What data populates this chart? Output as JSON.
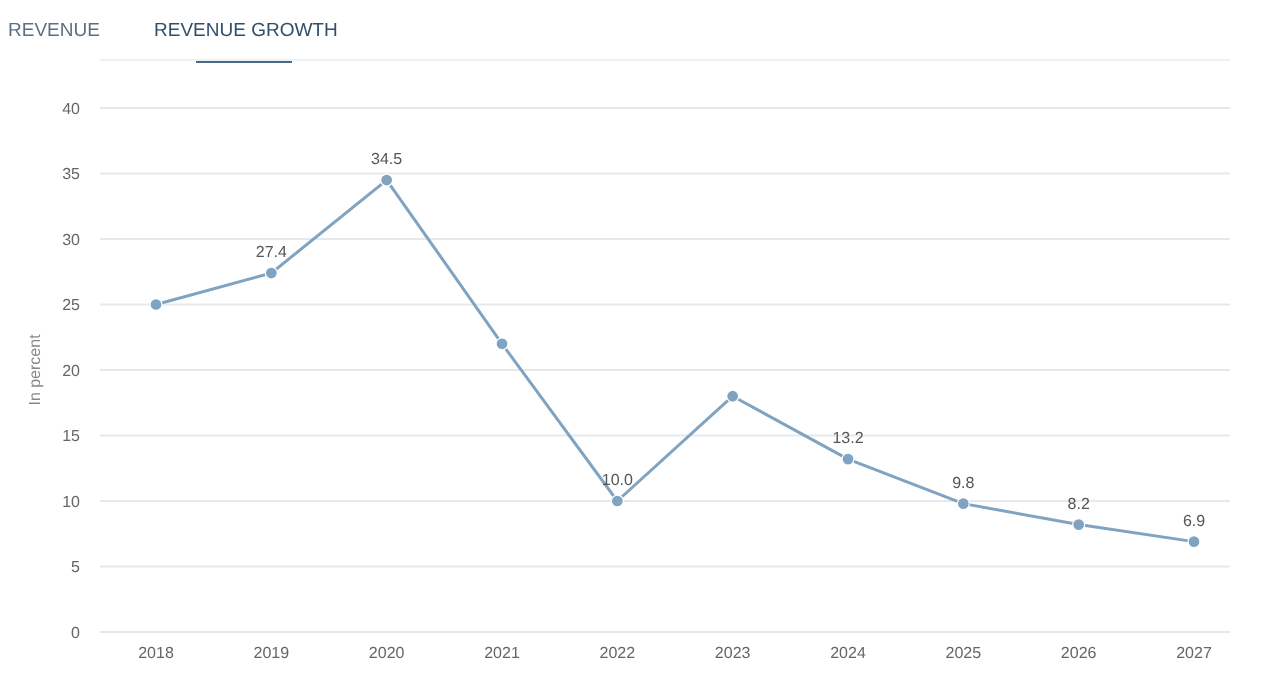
{
  "chart_data": {
    "type": "line",
    "annotations": [
      "REVENUE",
      "REVENUE GROWTH"
    ],
    "ylabel": "In percent",
    "categories": [
      "2018",
      "2019",
      "2020",
      "2021",
      "2022",
      "2023",
      "2024",
      "2025",
      "2026",
      "2027"
    ],
    "series": [
      {
        "color": "#7fa3c0",
        "values": [
          25,
          27.4,
          34.5,
          22,
          10.0,
          18,
          13.2,
          9.8,
          8.2,
          6.9
        ],
        "value_labels": [
          null,
          "27.4",
          "34.5",
          null,
          "10.0",
          null,
          "13.2",
          "9.8",
          "8.2",
          "6.9"
        ]
      }
    ],
    "ylim": [
      0,
      40
    ],
    "yticks": [
      0,
      5,
      10,
      15,
      20,
      25,
      30,
      35,
      40
    ],
    "grid": "y",
    "marker": "circle"
  }
}
